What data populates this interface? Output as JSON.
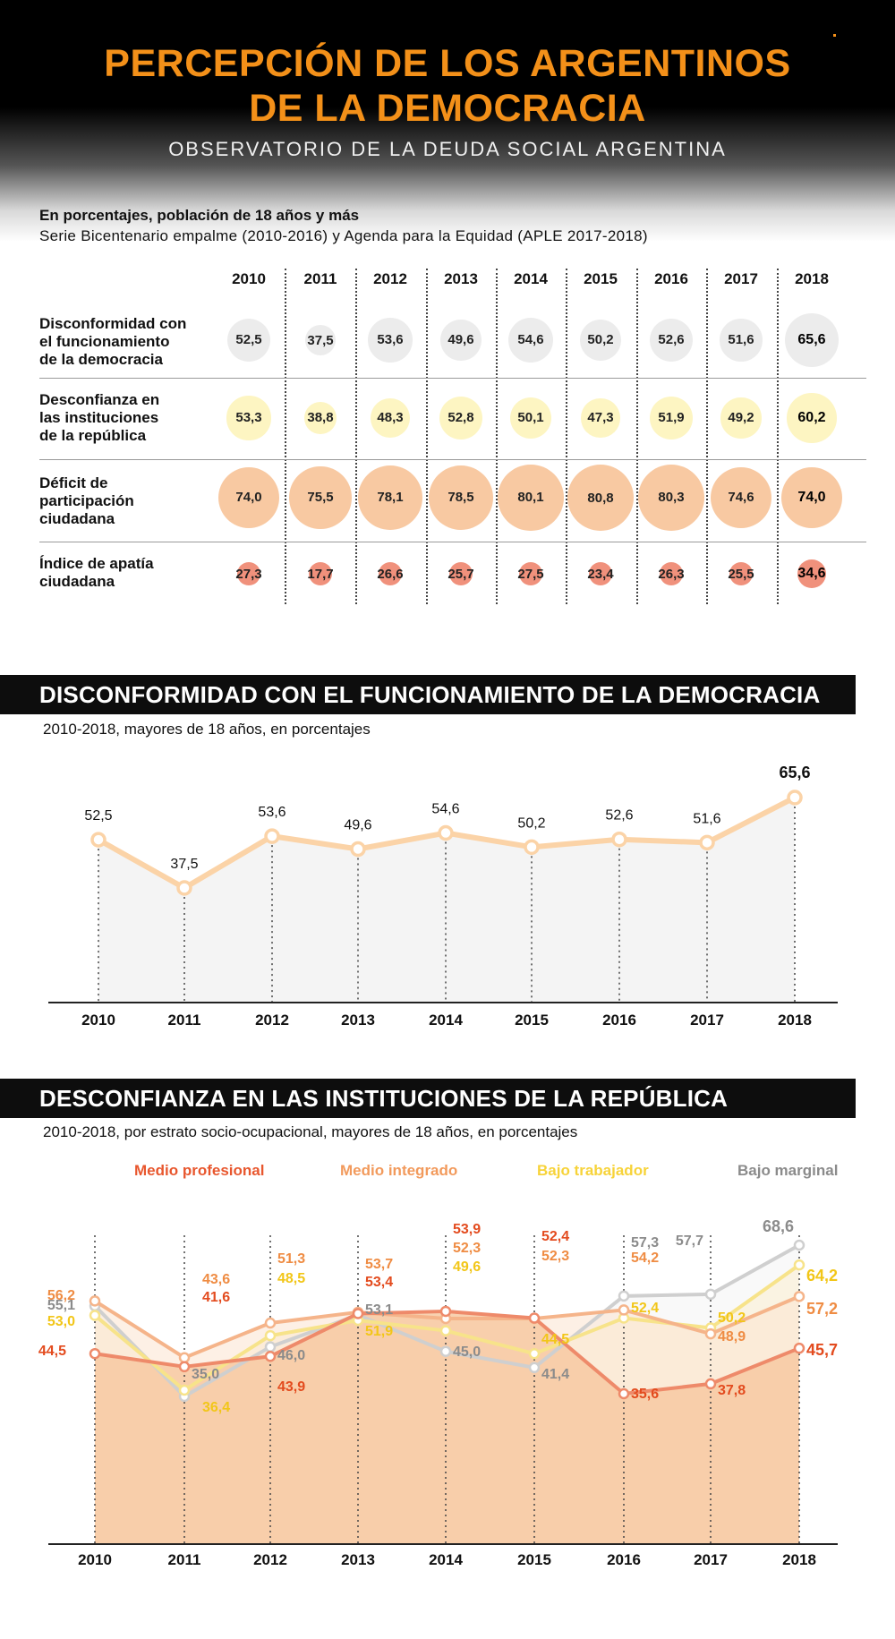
{
  "header": {
    "title_line1": "PERCEPCIÓN DE LOS ARGENTINOS",
    "title_line2": "DE LA DEMOCRACIA",
    "subtitle": "OBSERVATORIO DE LA DEUDA SOCIAL ARGENTINA",
    "intro_line1": "En porcentajes, población de 18 años y más",
    "intro_line2": "Serie Bicentenario empalme (2010-2016) y Agenda para la Equidad (APLE 2017-2018)"
  },
  "colors": {
    "orange_title": "#f39019",
    "gray_bubble": "#ececec",
    "yellow_bubble": "#fdf5c2",
    "peach_bubble": "#f8c9a2",
    "salmon_bubble": "#f0917c",
    "line_orange": "#fbd3a7",
    "medio_profesional": "#e8572e",
    "medio_integrado": "#f29a5c",
    "bajo_trabajador": "#f7d339",
    "bajo_marginal": "#8b8b8b"
  },
  "table": {
    "years": [
      "2010",
      "2011",
      "2012",
      "2013",
      "2014",
      "2015",
      "2016",
      "2017",
      "2018"
    ],
    "rows": [
      {
        "label": [
          "Disconformidad con",
          "el funcionamiento",
          "de la democracia"
        ],
        "values": [
          "52,5",
          "37,5",
          "53,6",
          "49,6",
          "54,6",
          "50,2",
          "52,6",
          "51,6",
          "65,6"
        ],
        "numbers": [
          52.5,
          37.5,
          53.6,
          49.6,
          54.6,
          50.2,
          52.6,
          51.6,
          65.6
        ],
        "color": "#ececec"
      },
      {
        "label": [
          "Desconfianza en",
          "las instituciones",
          "de la república"
        ],
        "values": [
          "53,3",
          "38,8",
          "48,3",
          "52,8",
          "50,1",
          "47,3",
          "51,9",
          "49,2",
          "60,2"
        ],
        "numbers": [
          53.3,
          38.8,
          48.3,
          52.8,
          50.1,
          47.3,
          51.9,
          49.2,
          60.2
        ],
        "color": "#fdf5c2"
      },
      {
        "label": [
          "Déficit de",
          "participación",
          "ciudadana"
        ],
        "values": [
          "74,0",
          "75,5",
          "78,1",
          "78,5",
          "80,1",
          "80,8",
          "80,3",
          "74,6",
          "74,0"
        ],
        "numbers": [
          74.0,
          75.5,
          78.1,
          78.5,
          80.1,
          80.8,
          80.3,
          74.6,
          74.0
        ],
        "color": "#f8c9a2"
      },
      {
        "label": [
          "Índice de apatía",
          "ciudadana"
        ],
        "values": [
          "27,3",
          "17,7",
          "26,6",
          "25,7",
          "27,5",
          "23,4",
          "26,3",
          "25,5",
          "34,6"
        ],
        "numbers": [
          27.3,
          17.7,
          26.6,
          25.7,
          27.5,
          23.4,
          26.3,
          25.5,
          34.6
        ],
        "color": "#f0917c"
      }
    ]
  },
  "section1": {
    "title": "DISCONFORMIDAD CON EL FUNCIONAMIENTO DE LA DEMOCRACIA",
    "subtitle": "2010-2018, mayores de 18 años, en porcentajes"
  },
  "section2": {
    "title": "DESCONFIANZA EN LAS INSTITUCIONES DE LA REPÚBLICA",
    "subtitle": "2010-2018, por estrato socio-ocupacional, mayores de 18 años, en porcentajes"
  },
  "chart_data": [
    {
      "type": "bubble-table",
      "categories": [
        "2010",
        "2011",
        "2012",
        "2013",
        "2014",
        "2015",
        "2016",
        "2017",
        "2018"
      ],
      "series": [
        {
          "name": "Disconformidad con el funcionamiento de la democracia",
          "values": [
            52.5,
            37.5,
            53.6,
            49.6,
            54.6,
            50.2,
            52.6,
            51.6,
            65.6
          ]
        },
        {
          "name": "Desconfianza en las instituciones de la república",
          "values": [
            53.3,
            38.8,
            48.3,
            52.8,
            50.1,
            47.3,
            51.9,
            49.2,
            60.2
          ]
        },
        {
          "name": "Déficit de participación ciudadana",
          "values": [
            74.0,
            75.5,
            78.1,
            78.5,
            80.1,
            80.8,
            80.3,
            74.6,
            74.0
          ]
        },
        {
          "name": "Índice de apatía ciudadana",
          "values": [
            27.3,
            17.7,
            26.6,
            25.7,
            27.5,
            23.4,
            26.3,
            25.5,
            34.6
          ]
        }
      ]
    },
    {
      "type": "area",
      "title": "DISCONFORMIDAD CON EL FUNCIONAMIENTO DE LA DEMOCRACIA",
      "categories": [
        "2010",
        "2011",
        "2012",
        "2013",
        "2014",
        "2015",
        "2016",
        "2017",
        "2018"
      ],
      "values": [
        52.5,
        37.5,
        53.6,
        49.6,
        54.6,
        50.2,
        52.6,
        51.6,
        65.6
      ],
      "labels": [
        "52,5",
        "37,5",
        "53,6",
        "49,6",
        "54,6",
        "50,2",
        "52,6",
        "51,6",
        "65,6"
      ],
      "ylim": [
        0,
        70
      ]
    },
    {
      "type": "line",
      "title": "DESCONFIANZA EN LAS INSTITUCIONES DE LA REPÚBLICA",
      "categories": [
        "2010",
        "2011",
        "2012",
        "2013",
        "2014",
        "2015",
        "2016",
        "2017",
        "2018"
      ],
      "legend": "top",
      "ylim": [
        0,
        70
      ],
      "series": [
        {
          "name": "Medio profesional",
          "color": "#e8572e",
          "values": [
            44.5,
            41.6,
            43.9,
            53.4,
            53.9,
            52.4,
            35.6,
            37.8,
            45.7
          ],
          "labels": [
            "44,5",
            "41,6",
            "43,9",
            "53,4",
            "53,9",
            "52,4",
            "35,6",
            "37,8",
            "45,7"
          ]
        },
        {
          "name": "Medio integrado",
          "color": "#f29a5c",
          "values": [
            56.2,
            43.6,
            51.3,
            53.7,
            52.3,
            52.3,
            54.2,
            48.9,
            57.2
          ],
          "labels": [
            "56,2",
            "43,6",
            "51,3",
            "53,7",
            "52,3",
            "52,3",
            "54,2",
            "48,9",
            "57,2"
          ]
        },
        {
          "name": "Bajo trabajador",
          "color": "#f7d339",
          "values": [
            53.0,
            36.4,
            48.5,
            51.9,
            49.6,
            44.5,
            52.4,
            50.2,
            64.2
          ],
          "labels": [
            "53,0",
            "36,4",
            "48,5",
            "51,9",
            "49,6",
            "44,5",
            "52,4",
            "50,2",
            "64,2"
          ]
        },
        {
          "name": "Bajo marginal",
          "color": "#8b8b8b",
          "values": [
            55.1,
            35.0,
            46.0,
            53.1,
            45.0,
            41.4,
            57.3,
            57.7,
            68.6
          ],
          "labels": [
            "55,1",
            "35,0",
            "46,0",
            "53,1",
            "45,0",
            "41,4",
            "57,3",
            "57,7",
            "68,6"
          ]
        }
      ]
    }
  ]
}
